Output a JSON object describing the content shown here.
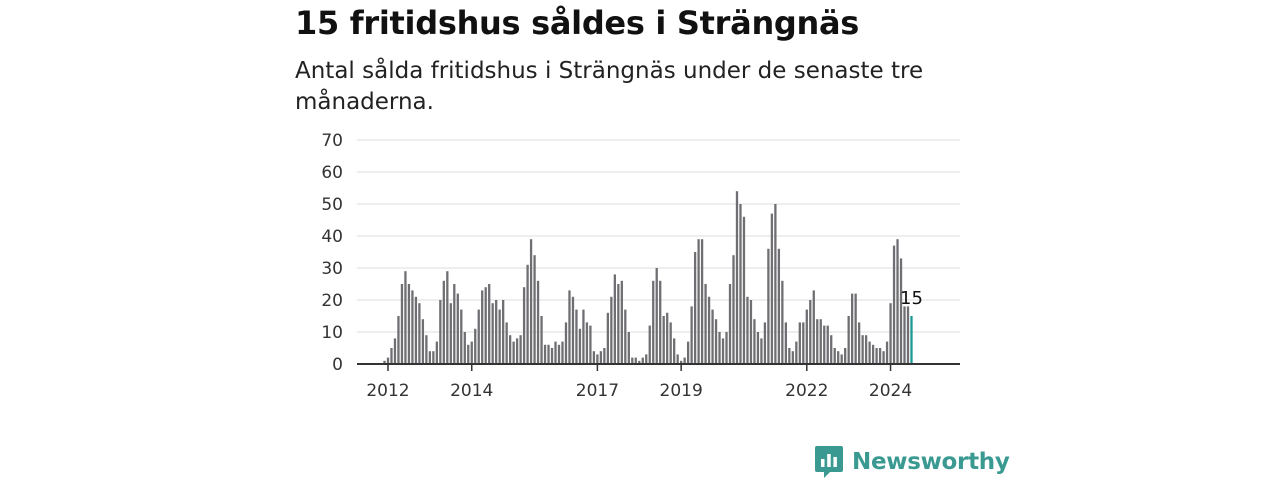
{
  "title": "15 fritidshus såldes i Strängnäs",
  "subtitle": "Antal sålda fritidshus i Strängnäs under de senaste tre månaderna.",
  "brand": {
    "name": "Newsworthy",
    "icon": "newsworthy-logo-icon",
    "color": "#3a9a92"
  },
  "colors": {
    "bar": "#6f6f73",
    "highlight": "#1a9a93",
    "grid": "#dddddd",
    "axis": "#333333"
  },
  "chart_data": {
    "type": "bar",
    "title": "15 fritidshus såldes i Strängnäs",
    "xlabel": "",
    "ylabel": "",
    "ylim": [
      0,
      70
    ],
    "yticks": [
      0,
      10,
      20,
      30,
      40,
      50,
      60,
      70
    ],
    "grid": true,
    "x_start": "2011-12",
    "x_end": "2025-01",
    "xticks": [
      {
        "label": "2012",
        "month": "2012-01"
      },
      {
        "label": "2014",
        "month": "2014-01"
      },
      {
        "label": "2017",
        "month": "2017-01"
      },
      {
        "label": "2019",
        "month": "2019-01"
      },
      {
        "label": "2022",
        "month": "2022-01"
      },
      {
        "label": "2024",
        "month": "2024-01"
      }
    ],
    "values": [
      1,
      2,
      5,
      8,
      15,
      25,
      29,
      25,
      23,
      21,
      19,
      14,
      9,
      4,
      4,
      7,
      20,
      26,
      29,
      19,
      25,
      22,
      17,
      10,
      6,
      7,
      11,
      17,
      23,
      24,
      25,
      19,
      20,
      17,
      20,
      13,
      9,
      7,
      8,
      9,
      24,
      31,
      39,
      34,
      26,
      15,
      6,
      6,
      5,
      7,
      6,
      7,
      13,
      23,
      21,
      17,
      11,
      17,
      13,
      12,
      4,
      3,
      4,
      5,
      16,
      21,
      28,
      25,
      26,
      17,
      10,
      2,
      2,
      1,
      2,
      3,
      12,
      26,
      30,
      26,
      15,
      16,
      13,
      8,
      3,
      1,
      2,
      7,
      18,
      35,
      39,
      39,
      25,
      21,
      17,
      14,
      10,
      8,
      10,
      25,
      34,
      54,
      50,
      46,
      21,
      20,
      14,
      10,
      8,
      13,
      36,
      47,
      50,
      36,
      26,
      13,
      5,
      4,
      7,
      13,
      13,
      17,
      20,
      23,
      14,
      14,
      12,
      12,
      9,
      5,
      4,
      3,
      5,
      15,
      22,
      22,
      13,
      9,
      9,
      7,
      6,
      5,
      5,
      4,
      7,
      19,
      37,
      39,
      33,
      18,
      18,
      15
    ],
    "last_value_label": "15",
    "highlight_last": true
  }
}
